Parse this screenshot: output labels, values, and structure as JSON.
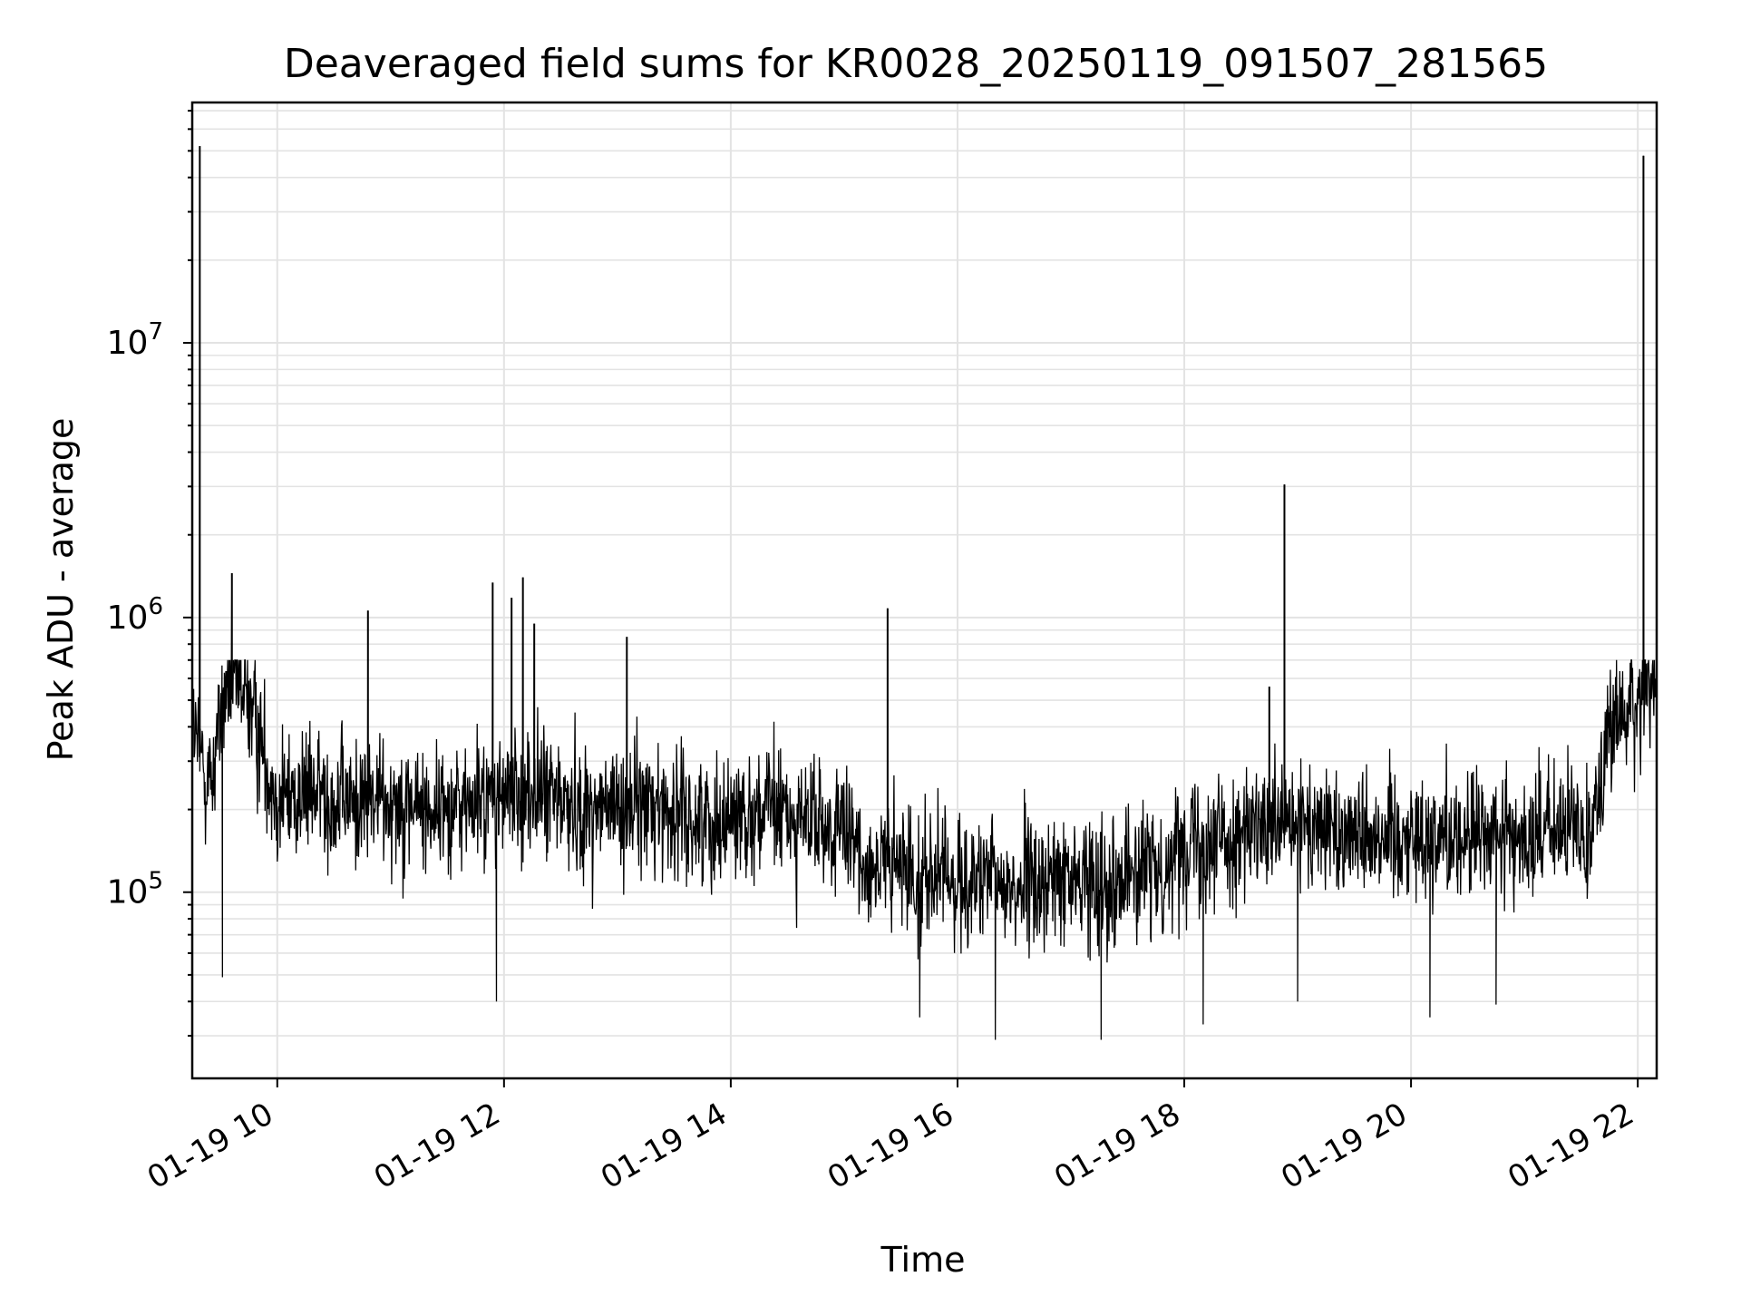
{
  "chart_data": {
    "type": "line",
    "title": "Deaveraged field sums for KR0028_20250119_091507_281565",
    "xlabel": "Time",
    "ylabel": "Peak ADU - average",
    "y_scale": "log",
    "ylim": [
      21000,
      75000000
    ],
    "x_range": [
      "2025-01-19 09:15",
      "2025-01-19 22:10"
    ],
    "x_ticks": [
      {
        "at": "2025-01-19 10:00",
        "label": "01-19 10"
      },
      {
        "at": "2025-01-19 12:00",
        "label": "01-19 12"
      },
      {
        "at": "2025-01-19 14:00",
        "label": "01-19 14"
      },
      {
        "at": "2025-01-19 16:00",
        "label": "01-19 16"
      },
      {
        "at": "2025-01-19 18:00",
        "label": "01-19 18"
      },
      {
        "at": "2025-01-19 20:00",
        "label": "01-19 20"
      },
      {
        "at": "2025-01-19 22:00",
        "label": "01-19 22"
      }
    ],
    "y_ticks": [
      {
        "value": 100000,
        "base": "10",
        "exp": "5"
      },
      {
        "value": 1000000,
        "base": "10",
        "exp": "6"
      },
      {
        "value": 10000000,
        "base": "10",
        "exp": "7"
      }
    ],
    "grid": true,
    "line_color": "#000000",
    "series": [
      {
        "x": [
          "2025-01-19 09:15",
          "2025-01-19 09:20",
          "2025-01-19 09:25",
          "2025-01-19 09:30",
          "2025-01-19 09:35",
          "2025-01-19 09:40",
          "2025-01-19 09:45",
          "2025-01-19 10:00",
          "2025-01-19 10:20",
          "2025-01-19 10:40",
          "2025-01-19 11:00",
          "2025-01-19 11:20",
          "2025-01-19 11:40",
          "2025-01-19 12:00",
          "2025-01-19 12:20",
          "2025-01-19 12:40",
          "2025-01-19 13:00",
          "2025-01-19 13:20",
          "2025-01-19 13:40",
          "2025-01-19 14:00",
          "2025-01-19 14:20",
          "2025-01-19 14:40",
          "2025-01-19 15:00",
          "2025-01-19 15:10",
          "2025-01-19 15:30",
          "2025-01-19 16:00",
          "2025-01-19 16:30",
          "2025-01-19 17:00",
          "2025-01-19 17:30",
          "2025-01-19 17:50",
          "2025-01-19 18:00",
          "2025-01-19 18:30",
          "2025-01-19 19:00",
          "2025-01-19 19:30",
          "2025-01-19 20:00",
          "2025-01-19 20:30",
          "2025-01-19 21:00",
          "2025-01-19 21:30",
          "2025-01-19 21:35",
          "2025-01-19 21:45",
          "2025-01-19 22:00",
          "2025-01-19 22:10"
        ],
        "y": [
          400000,
          300000,
          250000,
          450000,
          600000,
          550000,
          500000,
          220000,
          230000,
          210000,
          220000,
          200000,
          210000,
          220000,
          230000,
          200000,
          200000,
          210000,
          180000,
          190000,
          200000,
          180000,
          160000,
          130000,
          120000,
          110000,
          105000,
          110000,
          115000,
          120000,
          160000,
          160000,
          170000,
          170000,
          160000,
          160000,
          160000,
          170000,
          170000,
          400000,
          480000,
          600000
        ]
      }
    ],
    "spikes": [
      {
        "x": "2025-01-19 09:19",
        "y": 52000000
      },
      {
        "x": "2025-01-19 09:36",
        "y": 1450000
      },
      {
        "x": "2025-01-19 10:48",
        "y": 1060000
      },
      {
        "x": "2025-01-19 11:54",
        "y": 1340000
      },
      {
        "x": "2025-01-19 12:04",
        "y": 1180000
      },
      {
        "x": "2025-01-19 12:10",
        "y": 1400000
      },
      {
        "x": "2025-01-19 12:16",
        "y": 950000
      },
      {
        "x": "2025-01-19 13:05",
        "y": 850000
      },
      {
        "x": "2025-01-19 15:23",
        "y": 1080000
      },
      {
        "x": "2025-01-19 18:45",
        "y": 560000
      },
      {
        "x": "2025-01-19 18:53",
        "y": 3050000
      },
      {
        "x": "2025-01-19 22:03",
        "y": 48000000
      }
    ],
    "dips": [
      {
        "x": "2025-01-19 09:31",
        "y": 49000
      },
      {
        "x": "2025-01-19 11:56",
        "y": 40000
      },
      {
        "x": "2025-01-19 15:40",
        "y": 35000
      },
      {
        "x": "2025-01-19 16:20",
        "y": 29000
      },
      {
        "x": "2025-01-19 17:16",
        "y": 29000
      },
      {
        "x": "2025-01-19 18:10",
        "y": 33000
      },
      {
        "x": "2025-01-19 19:00",
        "y": 40000
      },
      {
        "x": "2025-01-19 20:10",
        "y": 35000
      },
      {
        "x": "2025-01-19 20:45",
        "y": 39000
      }
    ]
  }
}
